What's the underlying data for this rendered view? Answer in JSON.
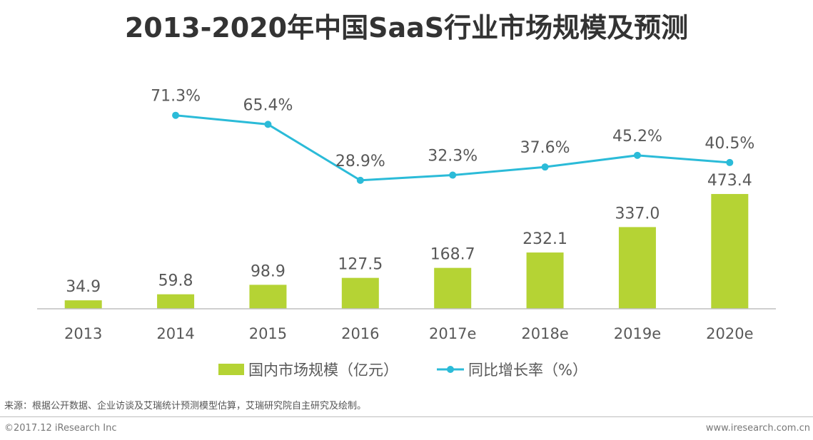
{
  "chart_data": {
    "type": "bar",
    "title": "2013-2020年中国SaaS行业市场规模及预测",
    "categories": [
      "2013",
      "2014",
      "2015",
      "2016",
      "2017e",
      "2018e",
      "2019e",
      "2020e"
    ],
    "series": [
      {
        "name": "国内市场规模（亿元）",
        "kind": "bar",
        "values": [
          34.9,
          59.8,
          98.9,
          127.5,
          168.7,
          232.1,
          337.0,
          473.4
        ],
        "labels": [
          "34.9",
          "59.8",
          "98.9",
          "127.5",
          "168.7",
          "232.1",
          "337.0",
          "473.4"
        ],
        "color": "#b5d334"
      },
      {
        "name": "同比增长率（%）",
        "kind": "line",
        "values": [
          null,
          71.3,
          65.4,
          28.9,
          32.3,
          37.6,
          45.2,
          40.5
        ],
        "labels": [
          "",
          "71.3%",
          "65.4%",
          "28.9%",
          "32.3%",
          "37.6%",
          "45.2%",
          "40.5%"
        ],
        "color": "#2bbbd8"
      }
    ],
    "legend": "bottom-center",
    "grid": false,
    "xlabel": "",
    "ylabel": "",
    "ylim_bar": [
      0,
      500
    ],
    "ylim_line": [
      0,
      100
    ]
  },
  "footer": {
    "source": "来源：根据公开数据、企业访谈及艾瑞统计预测模型估算，艾瑞研究院自主研究及绘制。",
    "copyright": "©2017.12 iResearch Inc",
    "url": "www.iresearch.com.cn"
  }
}
